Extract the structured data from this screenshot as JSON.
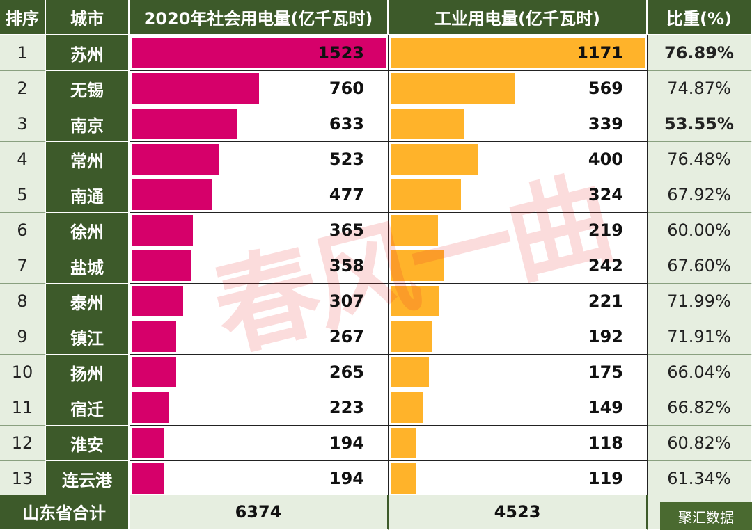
{
  "chart_data": {
    "type": "table",
    "headers": {
      "rank": "排序",
      "city": "城市",
      "total": "2020年社会用电量(亿千瓦时)",
      "industrial": "工业用电量(亿千瓦时)",
      "share": "比重(%)"
    },
    "rows": [
      {
        "rank": "1",
        "city": "苏州",
        "total": 1523,
        "industrial": 1171,
        "share": "76.89%",
        "highlight": true
      },
      {
        "rank": "2",
        "city": "无锡",
        "total": 760,
        "industrial": 569,
        "share": "74.87%",
        "highlight": false
      },
      {
        "rank": "3",
        "city": "南京",
        "total": 633,
        "industrial": 339,
        "share": "53.55%",
        "highlight": true
      },
      {
        "rank": "4",
        "city": "常州",
        "total": 523,
        "industrial": 400,
        "share": "76.48%",
        "highlight": false
      },
      {
        "rank": "5",
        "city": "南通",
        "total": 477,
        "industrial": 324,
        "share": "67.92%",
        "highlight": false
      },
      {
        "rank": "6",
        "city": "徐州",
        "total": 365,
        "industrial": 219,
        "share": "60.00%",
        "highlight": false
      },
      {
        "rank": "7",
        "city": "盐城",
        "total": 358,
        "industrial": 242,
        "share": "67.60%",
        "highlight": false
      },
      {
        "rank": "8",
        "city": "泰州",
        "total": 307,
        "industrial": 221,
        "share": "71.99%",
        "highlight": false
      },
      {
        "rank": "9",
        "city": "镇江",
        "total": 267,
        "industrial": 192,
        "share": "71.91%",
        "highlight": false
      },
      {
        "rank": "10",
        "city": "扬州",
        "total": 265,
        "industrial": 175,
        "share": "66.04%",
        "highlight": false
      },
      {
        "rank": "11",
        "city": "宿迁",
        "total": 223,
        "industrial": 149,
        "share": "66.82%",
        "highlight": false
      },
      {
        "rank": "12",
        "city": "淮安",
        "total": 194,
        "industrial": 118,
        "share": "60.82%",
        "highlight": false
      },
      {
        "rank": "13",
        "city": "连云港",
        "total": 194,
        "industrial": 119,
        "share": "61.34%",
        "highlight": false
      }
    ],
    "footer": {
      "label": "山东省合计",
      "total": "6374",
      "industrial": "4523"
    },
    "colors": {
      "total_bar": "#d6006a",
      "industrial_bar": "#ffb32a",
      "header_bg": "#3d5a2a",
      "highlight_text": "#d0142c"
    }
  },
  "watermark": "春风一曲",
  "credit": "聚汇数据"
}
